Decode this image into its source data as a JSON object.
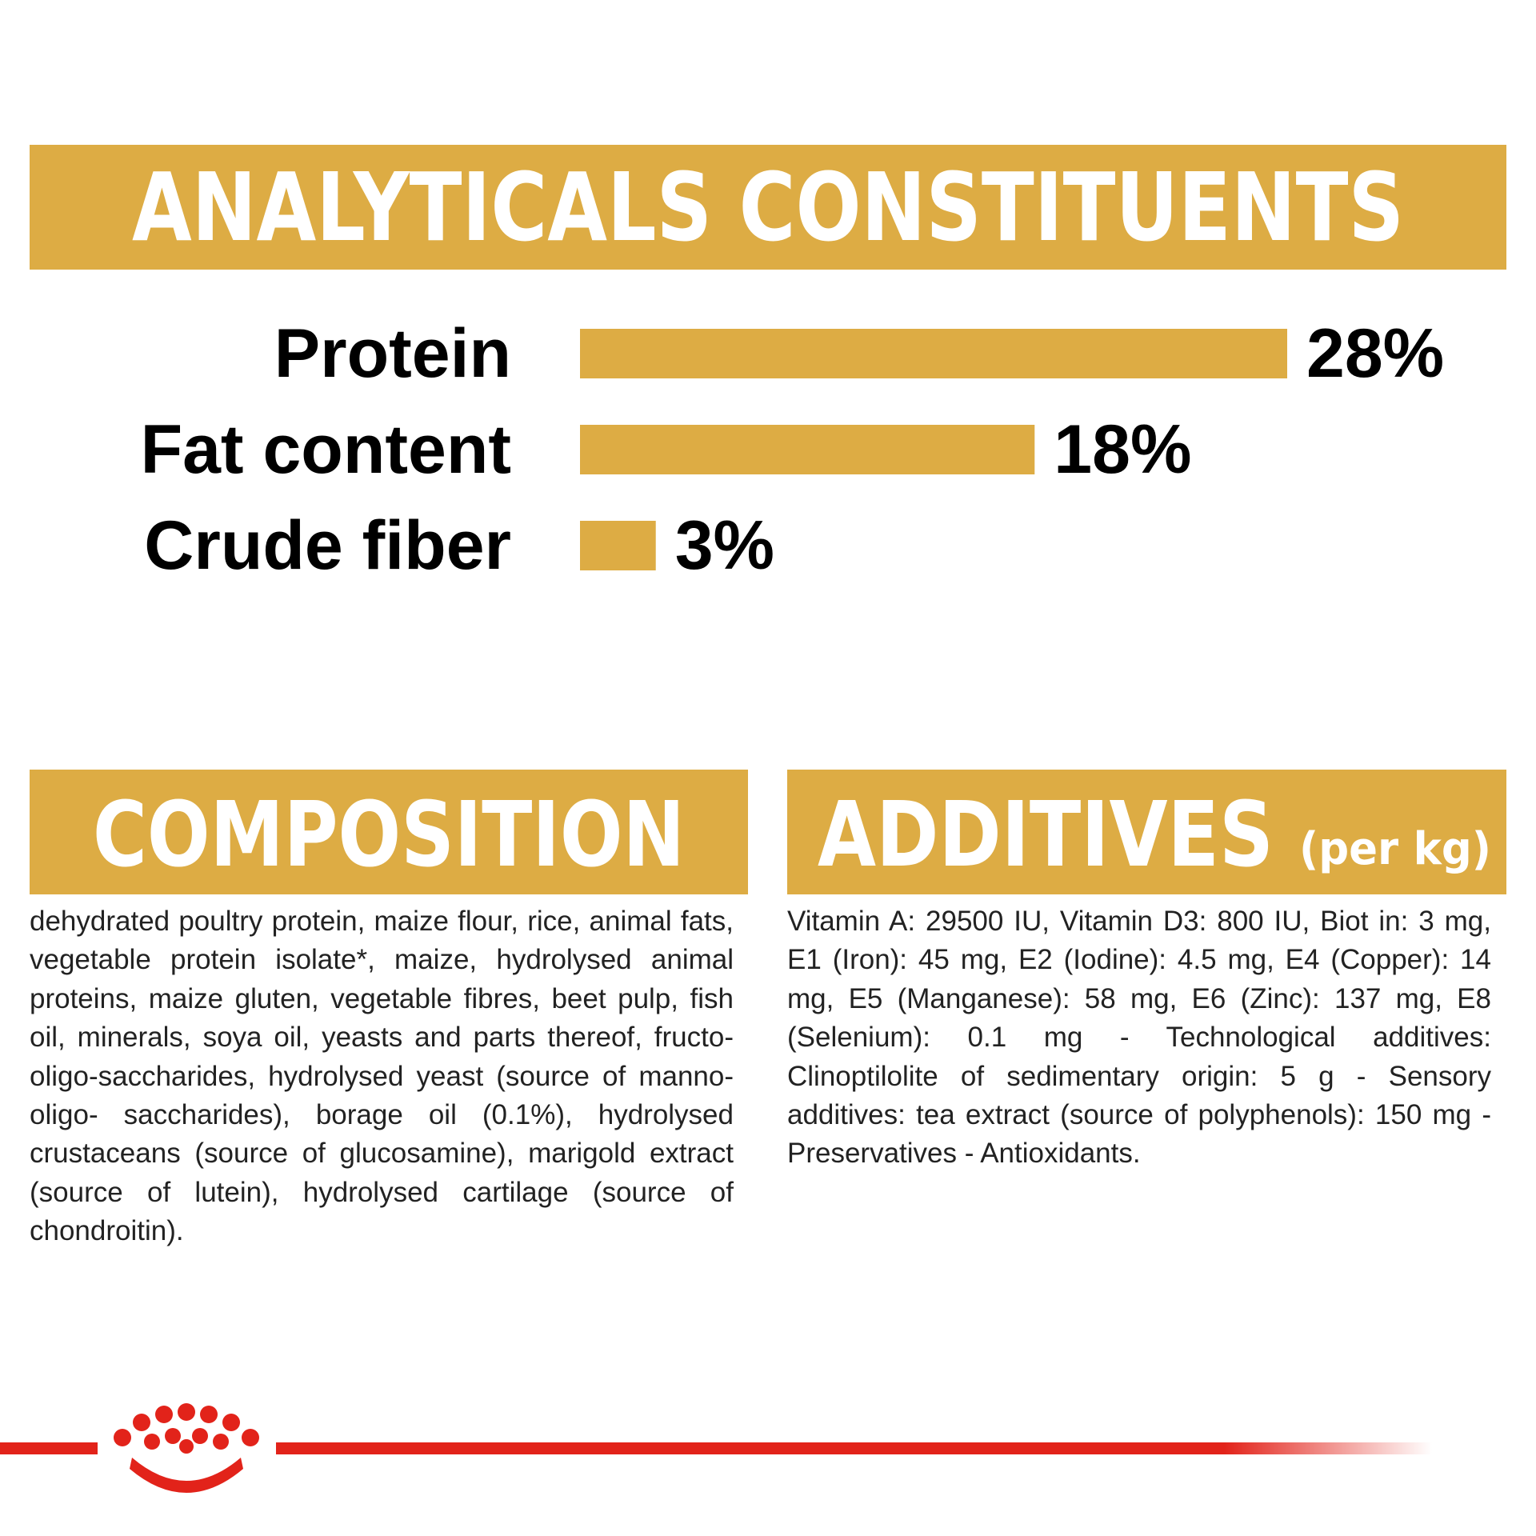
{
  "chart_data": {
    "type": "bar",
    "orientation": "horizontal",
    "title": "ANALYTICALS CONSTITUENTS",
    "categories": [
      "Protein",
      "Fat content",
      "Crude fiber"
    ],
    "values": [
      28,
      18,
      3
    ],
    "value_labels": [
      "28%",
      "18%",
      "3%"
    ],
    "color": "#ddac44"
  },
  "composition": {
    "title": "COMPOSITION",
    "text": "dehydrated poultry protein, maize flour, rice, animal fats, vegetable protein isolate*, maize, hydrolysed animal proteins, maize gluten, vegetable fibres, beet pulp, fish oil, minerals, soya oil, yeasts and parts thereof, fructo-oligo-saccharides, hydrolysed yeast (source of manno-oligo- saccharides), borage oil (0.1%), hydrolysed crustaceans (source of glucosamine), marigold extract (source of lutein), hydrolysed cartilage (source of chondroitin)."
  },
  "additives": {
    "title": "ADDITIVES",
    "unit": "(per kg)",
    "text": "Vitamin A: 29500 IU, Vitamin D3: 800 IU, Biot in: 3 mg, E1 (Iron): 45 mg, E2 (Iodine): 4.5 mg, E4 (Copper): 14 mg, E5 (Manganese): 58 mg, E6 (Zinc): 137 mg, E8 (Selenium): 0.1 mg - Technological additives: Clinoptilolite of sedimentary origin: 5 g - Sensory additives: tea extract (source of polyphenols): 150 mg - Preservatives - Antioxidants."
  }
}
